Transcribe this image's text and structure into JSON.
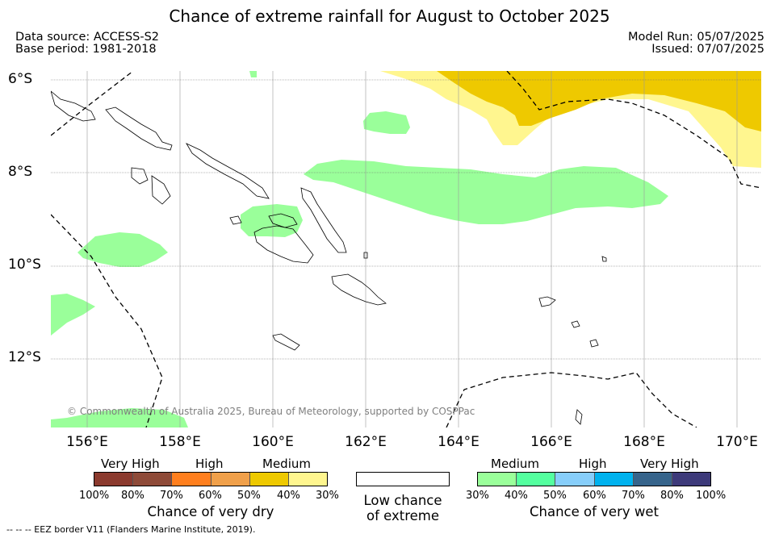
{
  "title": "Chance of extreme rainfall for August to October 2025",
  "meta": {
    "data_source": "Data source: ACCESS-S2",
    "base_period": "Base period: 1981-2018",
    "model_run": "Model Run: 05/07/2025",
    "issued": "Issued: 07/07/2025"
  },
  "axes": {
    "lat_labels": [
      "6°S",
      "8°S",
      "10°S",
      "12°S"
    ],
    "lon_labels": [
      "156°E",
      "158°E",
      "160°E",
      "162°E",
      "164°E",
      "166°E",
      "168°E",
      "170°E"
    ]
  },
  "copyright": "© Commonwealth of Australia 2025, Bureau of Meteorology, supported by COSPPac",
  "footer": "--  --  -- EEZ border V11 (Flanders Marine Institute, 2019).",
  "legend": {
    "dry": {
      "categories": [
        "Very High",
        "High",
        "Medium"
      ],
      "ticks": [
        "100%",
        "80%",
        "70%",
        "60%",
        "50%",
        "40%",
        "30%"
      ],
      "colors": [
        "#8b3a2e",
        "#8e4a38",
        "#ff7f1e",
        "#f0a04a",
        "#eec900",
        "#fff68f"
      ],
      "title": "Chance of very dry"
    },
    "low": {
      "title_line1": "Low chance",
      "title_line2": "of extreme",
      "color": "#ffffff"
    },
    "wet": {
      "categories": [
        "Medium",
        "High",
        "Very High"
      ],
      "ticks": [
        "30%",
        "40%",
        "50%",
        "60%",
        "70%",
        "80%",
        "100%"
      ],
      "colors": [
        "#9aff9a",
        "#54ff9f",
        "#87cefa",
        "#00b2ee",
        "#36648b",
        "#3d3a7a"
      ],
      "title": "Chance of very wet"
    }
  },
  "regions": {
    "wet_medium_color": "#9aff9a",
    "dry_medium_color": "#eec900",
    "dry_low_color": "#fff68f"
  }
}
